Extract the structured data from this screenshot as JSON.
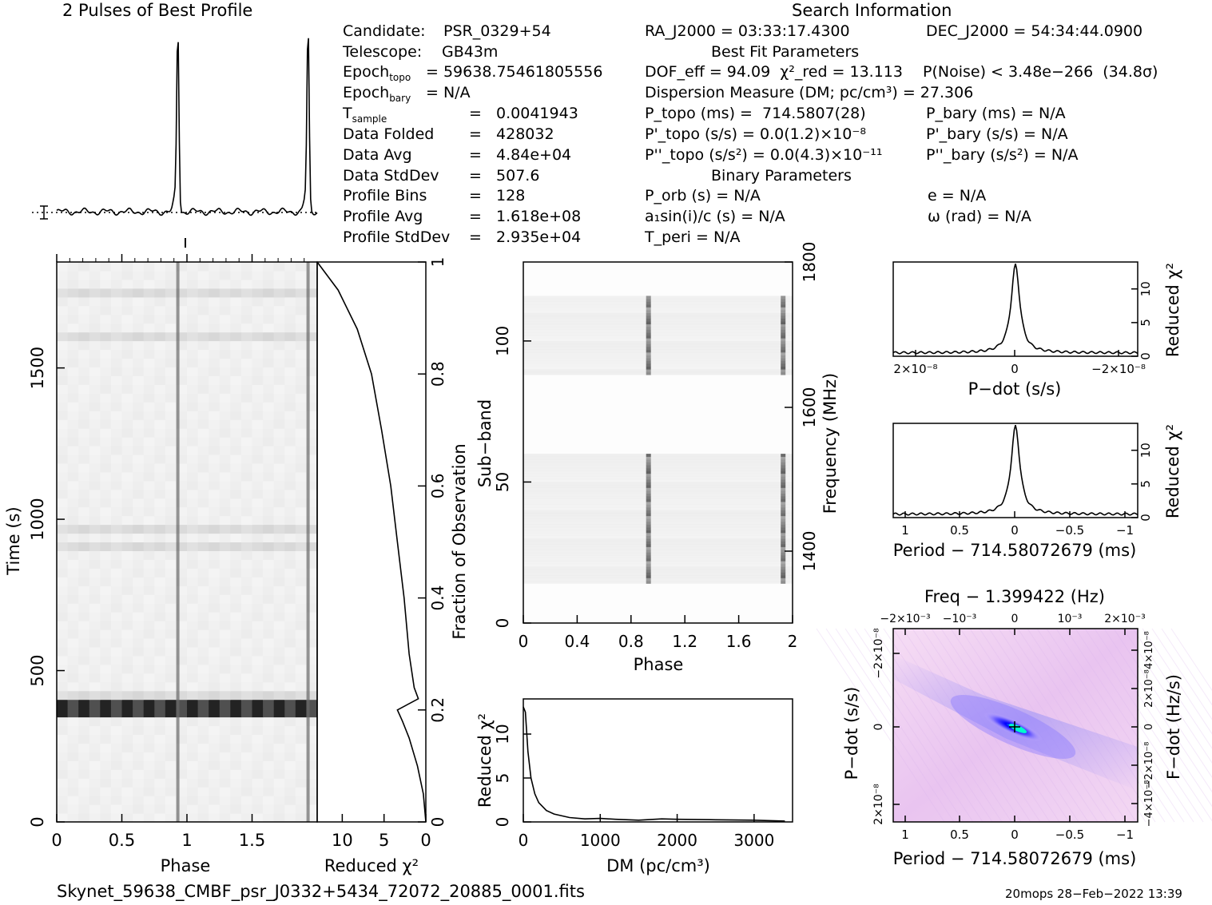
{
  "header": {
    "profile_title": "2 Pulses of Best Profile",
    "search_title": "Search Information",
    "best_fit_title": "Best Fit Parameters",
    "binary_title": "Binary Parameters"
  },
  "info_left": [
    {
      "label": "Candidate:",
      "value": "PSR_0329+54"
    },
    {
      "label": "Telescope:",
      "value": "GB43m"
    },
    {
      "label": "Epoch_topo",
      "value": "= 59638.75461805556"
    },
    {
      "label": "Epoch_bary",
      "value": "= N/A"
    },
    {
      "label": "T_sample",
      "value": "=   0.0041943"
    },
    {
      "label": "Data Folded",
      "value": "=   428032"
    },
    {
      "label": "Data Avg",
      "value": "=   4.84e+04"
    },
    {
      "label": "Data StdDev",
      "value": "=   507.6"
    },
    {
      "label": "Profile Bins",
      "value": "=   128"
    },
    {
      "label": "Profile Avg",
      "value": "=   1.618e+08"
    },
    {
      "label": "Profile StdDev",
      "value": "=   2.935e+04"
    }
  ],
  "search_info": {
    "ra": "RA_J2000 = 03:33:17.4300",
    "dec": "DEC_J2000 = 54:34:44.0900",
    "dof": "DOF_eff = 94.09  χ²_red = 13.113",
    "pnoise": "P(Noise) < 3.48e−266  (34.8σ)",
    "dm": "Dispersion Measure (DM; pc/cm³) = 27.306",
    "ptopo": "P_topo (ms) =  714.5807(28)",
    "pbary": "P_bary (ms) = N/A",
    "pdtopo": "P'_topo (s/s) = 0.0(1.2)×10⁻⁸",
    "pdbary": "P'_bary (s/s) = N/A",
    "pddtopo": "P''_topo (s/s²) = 0.0(4.3)×10⁻¹¹",
    "pddbary": "P''_bary (s/s²) = N/A",
    "porb": "P_orb (s) = N/A",
    "ecc": "e = N/A",
    "a1sini": "a₁sin(i)/c (s) = N/A",
    "omega": "ω (rad) = N/A",
    "tperi": "T_peri = N/A"
  },
  "footer": {
    "filename": "Skynet_59638_CMBF_psr_J0332+5434_72072_20885_0001.fits",
    "stamp": "20mops 28−Feb−2022 13:39"
  },
  "labels": {
    "time_axis": "Time (s)",
    "phase": "Phase",
    "reduced_chi2": "Reduced χ²",
    "fraction_obs": "Fraction of Observation",
    "subband": "Sub−band",
    "frequency": "Frequency (MHz)",
    "dm_axis": "DM (pc/cm³)",
    "pdot_axis": "P−dot (s/s)",
    "period_axis": "Period − 714.58072679 (ms)",
    "freq_axis": "Freq − 1.399422 (Hz)",
    "fdot_axis": "F−dot (Hz/s)"
  },
  "chart_data": [
    {
      "type": "line",
      "title": "2 Pulses of Best Profile",
      "description_of_axes": "phase 0-2",
      "pulse_phases": [
        0.93,
        1.93
      ],
      "baseline": 0.04,
      "peak": 1.0
    },
    {
      "type": "heatmap",
      "name": "time-phase",
      "xlabel": "Phase",
      "ylabel": "Time (s)",
      "xlim": [
        0,
        2
      ],
      "ylim": [
        0,
        1850
      ],
      "xticks": [
        "0",
        "0.5",
        "1",
        "1.5"
      ],
      "yticks": [
        "0",
        "500",
        "1000",
        "1500"
      ],
      "pulse_phase": 0.93,
      "strong_rows_time_s": [
        370,
        385
      ]
    },
    {
      "type": "line",
      "name": "reduced-chi2-vs-fraction",
      "xlabel": "Reduced χ²",
      "ylabel": "Fraction of Observation",
      "xlim": [
        13,
        0
      ],
      "ylim": [
        0,
        1
      ],
      "xticks": [
        "10",
        "5",
        "0"
      ],
      "yticks": [
        "0",
        "0.2",
        "0.4",
        "0.6",
        "0.8",
        "1"
      ],
      "points": [
        [
          0.0,
          0.0
        ],
        [
          0.3,
          0.05
        ],
        [
          1.0,
          0.1
        ],
        [
          2.0,
          0.15
        ],
        [
          2.8,
          0.18
        ],
        [
          3.4,
          0.2
        ],
        [
          0.9,
          0.22
        ],
        [
          1.4,
          0.24
        ],
        [
          2.0,
          0.3
        ],
        [
          2.6,
          0.4
        ],
        [
          3.4,
          0.5
        ],
        [
          4.2,
          0.6
        ],
        [
          5.3,
          0.7
        ],
        [
          6.5,
          0.8
        ],
        [
          8.2,
          0.88
        ],
        [
          10.5,
          0.95
        ],
        [
          13.0,
          1.0
        ]
      ]
    },
    {
      "type": "heatmap",
      "name": "subband-phase",
      "xlabel": "Phase",
      "ylabel": "Sub−band",
      "xlim": [
        0,
        2
      ],
      "ylim": [
        0,
        128
      ],
      "xticks": [
        "0",
        "0.4",
        "0.8",
        "1.2",
        "1.6",
        "2"
      ],
      "yticks": [
        "0",
        "50",
        "100"
      ],
      "freq_ticks": [
        "1400",
        "1600",
        "1800"
      ],
      "bands_with_signal": [
        [
          14,
          59
        ],
        [
          88,
          115
        ]
      ]
    },
    {
      "type": "line",
      "name": "dm-curve",
      "xlabel": "DM (pc/cm³)",
      "ylabel": "Reduced χ²",
      "xlim": [
        0,
        3500
      ],
      "ylim": [
        0,
        14
      ],
      "xticks": [
        "0",
        "1000",
        "2000",
        "3000"
      ],
      "yticks": [
        "0",
        "5",
        "10"
      ],
      "points": [
        [
          0,
          13.1
        ],
        [
          27,
          12.5
        ],
        [
          60,
          8
        ],
        [
          100,
          5
        ],
        [
          150,
          3.2
        ],
        [
          200,
          2.2
        ],
        [
          300,
          1.3
        ],
        [
          400,
          0.9
        ],
        [
          600,
          0.5
        ],
        [
          800,
          0.35
        ],
        [
          1000,
          0.4
        ],
        [
          1200,
          0.3
        ],
        [
          1500,
          0.2
        ],
        [
          1800,
          0.35
        ],
        [
          2000,
          0.3
        ],
        [
          2500,
          0.25
        ],
        [
          3000,
          0.2
        ],
        [
          3400,
          0.1
        ]
      ]
    },
    {
      "type": "line",
      "name": "pdot-curve",
      "xlabel": "P−dot (s/s)",
      "ylabel": "Reduced χ²",
      "xticks": [
        "2×10⁻⁸",
        "0",
        "−2×10⁻⁸"
      ],
      "yticks": [
        "0",
        "5",
        "10"
      ],
      "ylim": [
        0,
        14
      ],
      "peak": 13.1
    },
    {
      "type": "line",
      "name": "period-curve",
      "xlabel": "Period − 714.58072679 (ms)",
      "ylabel": "Reduced χ²",
      "xlim": [
        1.1,
        -1.1
      ],
      "xticks": [
        "1",
        "0.5",
        "0",
        "−0.5",
        "−1"
      ],
      "yticks": [
        "0",
        "5",
        "10"
      ],
      "ylim": [
        0,
        14
      ],
      "peak": 13.1
    },
    {
      "type": "heatmap",
      "name": "p-pdot-plane",
      "xlabel": "Period − 714.58072679 (ms)",
      "ylabel": "P−dot (s/s)",
      "top_label": "Freq − 1.399422 (Hz)",
      "right_label": "F−dot (Hz/s)",
      "xticks": [
        "1",
        "0.5",
        "0",
        "−0.5",
        "−1"
      ],
      "top_ticks": [
        "−2×10⁻³",
        "−10⁻³",
        "0",
        "10⁻³",
        "2×10⁻³"
      ],
      "yticks": [
        "2×10⁻⁸",
        "0",
        "−2×10⁻⁸"
      ],
      "right_ticks": [
        "−4×10⁻⁸",
        "−2×10⁻⁸",
        "0",
        "2×10⁻⁸",
        "4×10⁻⁸"
      ]
    }
  ]
}
